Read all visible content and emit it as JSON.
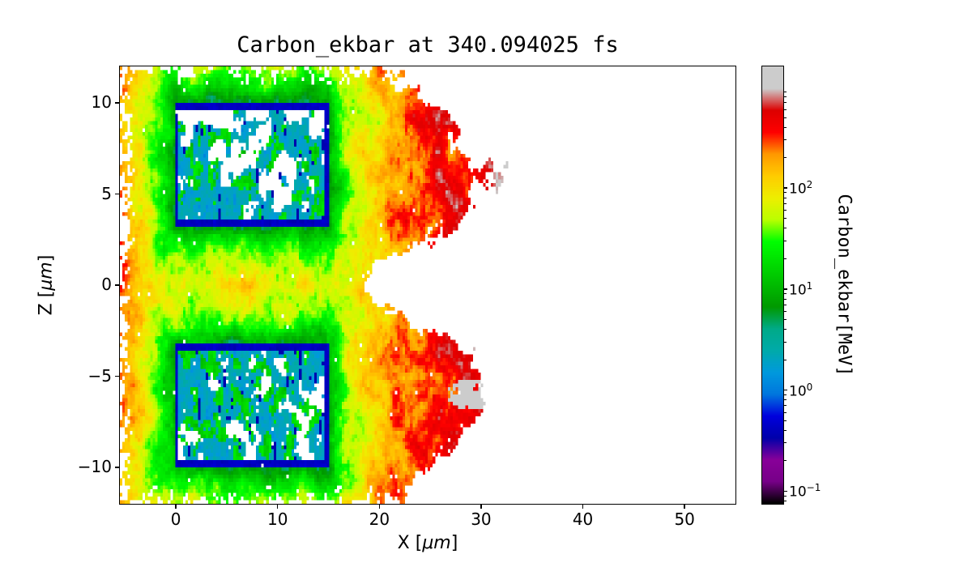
{
  "chart_data": {
    "type": "heatmap",
    "title": "Carbon_ekbar at 340.094025 fs",
    "quantity": "Carbon_ekbar",
    "time_fs": 340.094025,
    "xlabel": {
      "prefix": "X [",
      "unit": "μm",
      "suffix": "]"
    },
    "ylabel": {
      "prefix": "Z [",
      "unit": "μm",
      "suffix": "]"
    },
    "xlim": [
      -5.5,
      55
    ],
    "ylim": [
      -12,
      12
    ],
    "xticks": [
      "0",
      "10",
      "20",
      "30",
      "40",
      "50"
    ],
    "xtick_values": [
      0,
      10,
      20,
      30,
      40,
      50
    ],
    "yticks": [
      "10",
      "5",
      "0",
      "−5",
      "−10"
    ],
    "ytick_values": [
      10,
      5,
      0,
      -5,
      -10
    ],
    "grid": false,
    "legend": "none",
    "colorbar": {
      "label": "Carbon_ekbar[MeV]",
      "scale": "log",
      "vmin": 0.075,
      "vmax": 1600,
      "major_ticks": [
        {
          "label_base": "10",
          "label_exp": "2",
          "value": 100
        },
        {
          "label_base": "10",
          "label_exp": "1",
          "value": 10
        },
        {
          "label_base": "10",
          "label_exp": "0",
          "value": 1
        },
        {
          "label_base": "10",
          "label_exp": "−1",
          "value": 0.1
        }
      ],
      "colormap": "nipy_spectral",
      "colormap_stops": [
        [
          0,
          "#000000"
        ],
        [
          0.05,
          "#770088"
        ],
        [
          0.1,
          "#880099"
        ],
        [
          0.15,
          "#0000aa"
        ],
        [
          0.2,
          "#0000dd"
        ],
        [
          0.25,
          "#0077dd"
        ],
        [
          0.3,
          "#0099dd"
        ],
        [
          0.35,
          "#00aaaa"
        ],
        [
          0.4,
          "#00aa88"
        ],
        [
          0.45,
          "#009900"
        ],
        [
          0.5,
          "#00bb00"
        ],
        [
          0.55,
          "#00dd00"
        ],
        [
          0.6,
          "#00ff00"
        ],
        [
          0.65,
          "#bbff00"
        ],
        [
          0.7,
          "#eeee00"
        ],
        [
          0.75,
          "#ffcc00"
        ],
        [
          0.8,
          "#ff9900"
        ],
        [
          0.85,
          "#ff0000"
        ],
        [
          0.9,
          "#dd0000"
        ],
        [
          0.95,
          "#cccccc"
        ],
        [
          1,
          "#cccccc"
        ]
      ]
    },
    "scene": {
      "description": "2D mean-energy map of carbon ions: two rectangular targets (blue/cyan, ~0.3–3 MeV, with dark-blue outlines, internal white voids and green patches) surrounded by an expanding plasma whose energy grows with distance from the targets — green rim (~10 MeV), yellow shell (~100 MeV), red front (~300–900 MeV) reaching x≈25–32 μm with two lobes centered near z≈±6 and a white notch near z≈0; small grey/pink hot spot (~1–2 GeV) near (29, −6); white background where no particles.",
      "targets": [
        {
          "x": [
            0,
            15
          ],
          "z": [
            3.3,
            10
          ]
        },
        {
          "x": [
            0,
            15
          ],
          "z": [
            -10,
            -3.3
          ]
        }
      ],
      "plume": {
        "x_min": -5.5,
        "front_base_x": 22,
        "lobe_amplitude": 9,
        "lobe_center_abs_z": 6,
        "lobe_width2": 16,
        "notch_depth": 3.5,
        "notch_width2": 2.5,
        "edge_energy_MeV": 6,
        "log10_growth": 2.35,
        "growth_scale": 3.5
      },
      "hot_spot": {
        "x": 29,
        "z": -6,
        "rx": 2.3,
        "rz": 0.85,
        "energy_MeV": 1800
      }
    }
  }
}
